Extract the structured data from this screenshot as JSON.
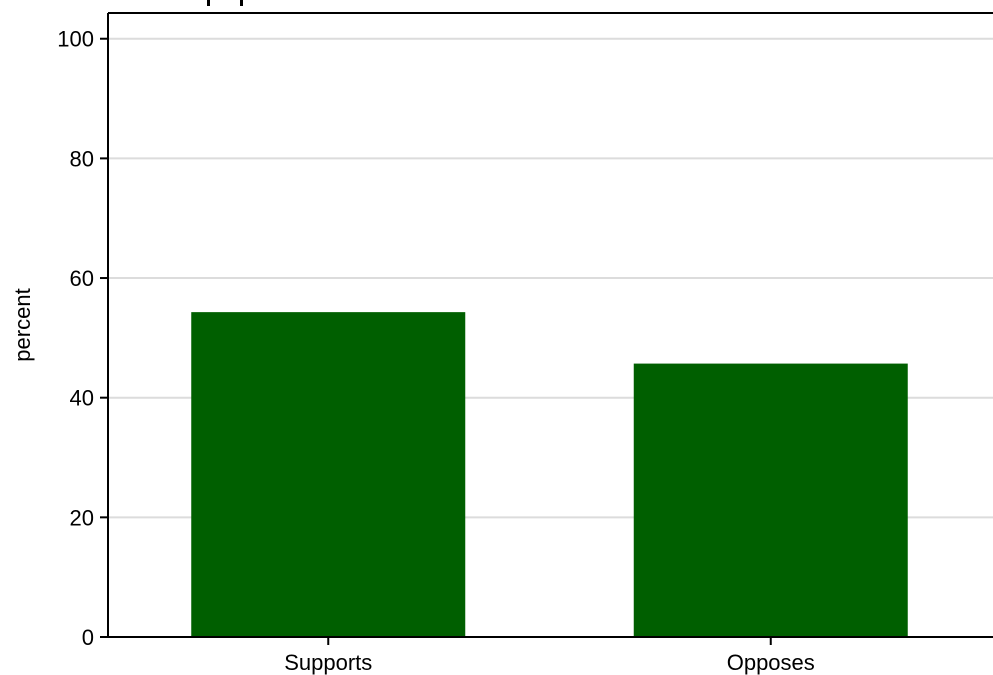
{
  "chart_data": {
    "type": "bar",
    "categories": [
      "Supports",
      "Opposes"
    ],
    "values": [
      54.3,
      45.7
    ],
    "ylabel": "percent",
    "xlabel": "",
    "ylim": [
      0,
      100
    ],
    "yticks": [
      0,
      20,
      40,
      60,
      80,
      100
    ],
    "grid": true,
    "bar_color": "#005f00",
    "grid_color": "#dcdcdc"
  }
}
